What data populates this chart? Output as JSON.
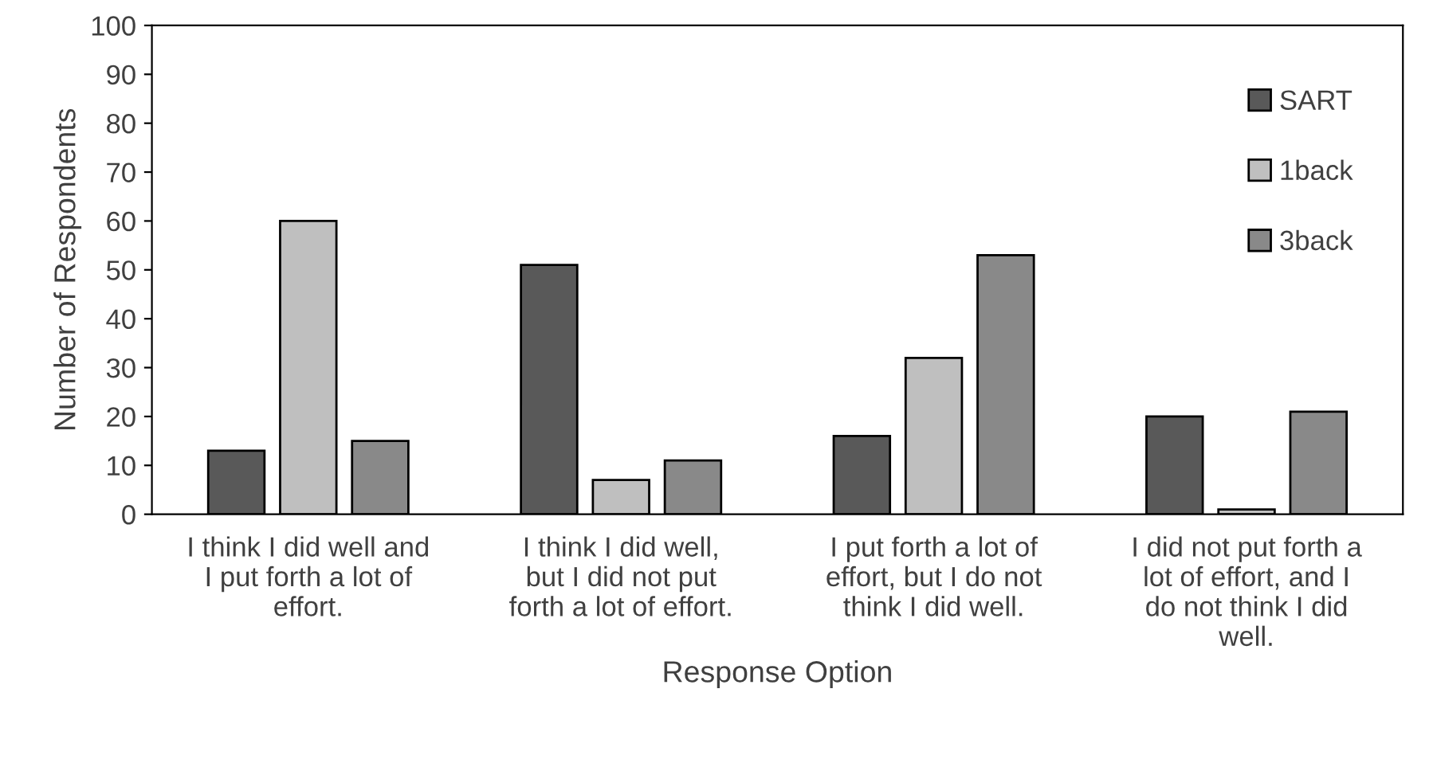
{
  "chart_data": {
    "type": "bar",
    "xlabel": "Response Option",
    "ylabel": "Number of Respondents",
    "categories": [
      "I think I did well and I put forth a lot of effort.",
      "I think I did well, but I did not put forth a lot of effort.",
      "I put forth a lot of effort, but I do not think I did well.",
      "I did not put forth a lot of effort, and I do not think I did well."
    ],
    "series": [
      {
        "name": "SART",
        "color": "#595959",
        "values": [
          13,
          51,
          16,
          20
        ]
      },
      {
        "name": "1back",
        "color": "#bfbfbf",
        "values": [
          60,
          7,
          32,
          1
        ]
      },
      {
        "name": "3back",
        "color": "#898989",
        "values": [
          15,
          11,
          53,
          21
        ]
      }
    ],
    "ylim": [
      0,
      100
    ],
    "yticks": [
      0,
      10,
      20,
      30,
      40,
      50,
      60,
      70,
      80,
      90,
      100
    ],
    "grid": false,
    "legend": "top right"
  }
}
